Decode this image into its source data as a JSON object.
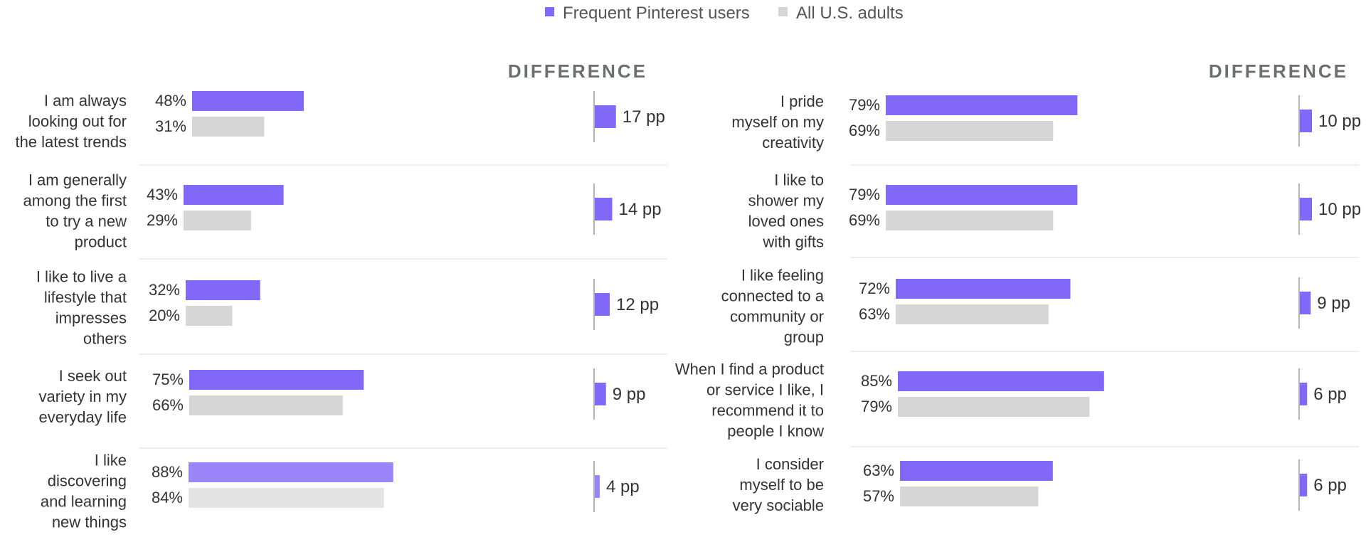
{
  "colors": {
    "frequent": "#8268f8",
    "frequent_light": "#9a85fa",
    "all": "#d6d6d6",
    "all_light": "#e4e4e4",
    "divider": "#dcdcdc",
    "header": "#6a706d"
  },
  "legend": {
    "frequent": "Frequent Pinterest users",
    "all": "All U.S. adults"
  },
  "chart_data": [
    {
      "type": "bar",
      "orientation": "horizontal",
      "header": "DIFFERENCE",
      "series_names": [
        "Frequent Pinterest users",
        "All U.S. adults"
      ],
      "items": [
        {
          "label": [
            "I am always",
            "looking out for",
            "the latest trends"
          ],
          "frequent": 48,
          "all": 31,
          "frequent_text": "48%",
          "all_text": "31%",
          "diff": 17,
          "diff_text": "17 pp"
        },
        {
          "label": [
            "I am generally",
            "among the first",
            "to try a new",
            "product"
          ],
          "frequent": 43,
          "all": 29,
          "frequent_text": "43%",
          "all_text": "29%",
          "diff": 14,
          "diff_text": "14 pp"
        },
        {
          "label": [
            "I like to live a",
            "lifestyle that",
            "impresses",
            "others"
          ],
          "frequent": 32,
          "all": 20,
          "frequent_text": "32%",
          "all_text": "20%",
          "diff": 12,
          "diff_text": "12 pp"
        },
        {
          "label": [
            "I seek out",
            "variety in my",
            "everyday life"
          ],
          "frequent": 75,
          "all": 66,
          "frequent_text": "75%",
          "all_text": "66%",
          "diff": 9,
          "diff_text": "9 pp"
        },
        {
          "label": [
            "I like",
            "discovering",
            "and learning",
            "new things"
          ],
          "frequent": 88,
          "all": 84,
          "frequent_text": "88%",
          "all_text": "84%",
          "diff": 4,
          "diff_text": "4 pp",
          "faded": true
        }
      ]
    },
    {
      "type": "bar",
      "orientation": "horizontal",
      "header": "DIFFERENCE",
      "series_names": [
        "Frequent Pinterest users",
        "All U.S. adults"
      ],
      "items": [
        {
          "label": [
            "I pride",
            "myself on my",
            "creativity"
          ],
          "frequent": 79,
          "all": 69,
          "frequent_text": "79%",
          "all_text": "69%",
          "diff": 10,
          "diff_text": "10 pp"
        },
        {
          "label": [
            "I like to",
            "shower my",
            "loved ones",
            "with gifts"
          ],
          "frequent": 79,
          "all": 69,
          "frequent_text": "79%",
          "all_text": "69%",
          "diff": 10,
          "diff_text": "10 pp"
        },
        {
          "label": [
            "I like feeling",
            "connected to a",
            "community or",
            "group"
          ],
          "frequent": 72,
          "all": 63,
          "frequent_text": "72%",
          "all_text": "63%",
          "diff": 9,
          "diff_text": "9 pp"
        },
        {
          "label": [
            "When I find a product",
            "or service I like, I",
            "recommend it to",
            "people I know"
          ],
          "frequent": 85,
          "all": 79,
          "frequent_text": "85%",
          "all_text": "79%",
          "diff": 6,
          "diff_text": "6 pp"
        },
        {
          "label": [
            "I consider",
            "myself to be",
            "very sociable"
          ],
          "frequent": 63,
          "all": 57,
          "frequent_text": "63%",
          "all_text": "57%",
          "diff": 6,
          "diff_text": "6 pp"
        }
      ]
    }
  ]
}
